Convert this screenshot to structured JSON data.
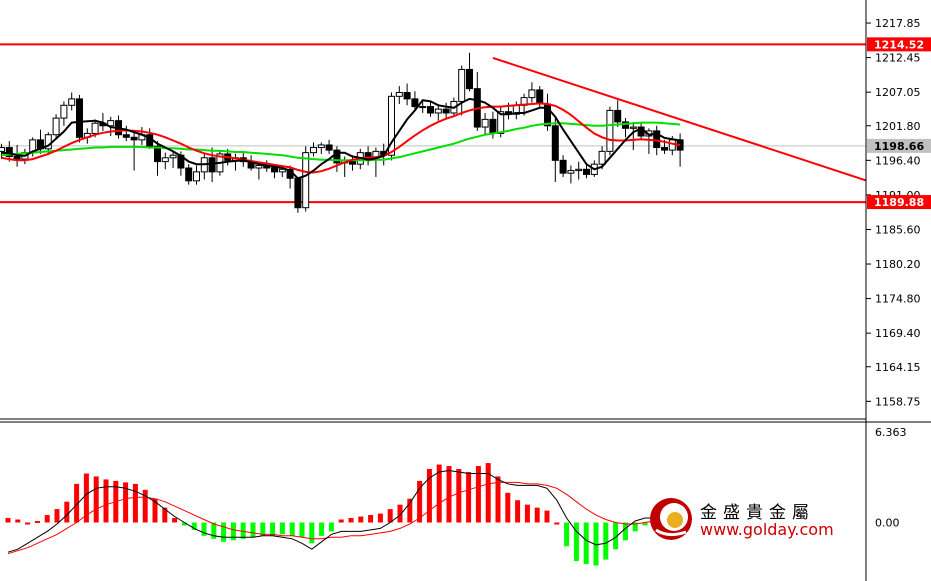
{
  "chart_data": [
    {
      "type": "candlestick",
      "ylim": [
        1156.3,
        1220.2
      ],
      "y_ticks": [
        "1217.85",
        "1212.45",
        "1207.05",
        "1201.80",
        "1196.40",
        "1191.00",
        "1185.60",
        "1180.20",
        "1174.80",
        "1169.40",
        "1164.15",
        "1158.75"
      ],
      "y_tick_values": [
        1217.85,
        1212.45,
        1207.05,
        1201.8,
        1196.4,
        1191.0,
        1185.6,
        1180.2,
        1174.8,
        1169.4,
        1164.15,
        1158.75
      ],
      "price_tags": [
        {
          "label": "1214.52",
          "value": 1214.52,
          "color": "#ff0000"
        },
        {
          "label": "1198.66",
          "value": 1198.66,
          "color": "#c0c0c0"
        },
        {
          "label": "1189.88",
          "value": 1189.88,
          "color": "#ff0000"
        }
      ],
      "horizontal_lines": [
        {
          "value": 1214.52,
          "color": "#ff0000"
        },
        {
          "value": 1189.88,
          "color": "#ff0000"
        },
        {
          "value": 1198.66,
          "color": "#c0c0c0"
        }
      ],
      "trendline": {
        "from": [
          63,
          1212.4
        ],
        "to": [
          113,
          1192.4
        ],
        "color": "#ff0000"
      },
      "candles": [
        [
          1197.8,
          1199.0,
          1196.6,
          1198.4
        ],
        [
          1198.4,
          1199.4,
          1196.2,
          1197.0
        ],
        [
          1197.0,
          1198.8,
          1195.4,
          1196.6
        ],
        [
          1196.6,
          1198.2,
          1195.8,
          1197.6
        ],
        [
          1197.6,
          1200.0,
          1197.0,
          1199.6
        ],
        [
          1199.6,
          1201.2,
          1197.4,
          1198.2
        ],
        [
          1198.2,
          1200.8,
          1197.2,
          1200.4
        ],
        [
          1200.4,
          1203.6,
          1199.8,
          1203.0
        ],
        [
          1203.0,
          1205.6,
          1201.8,
          1205.0
        ],
        [
          1205.0,
          1207.0,
          1204.2,
          1206.0
        ],
        [
          1206.0,
          1206.6,
          1199.2,
          1200.0
        ],
        [
          1200.0,
          1201.4,
          1199.0,
          1200.6
        ],
        [
          1200.6,
          1202.8,
          1200.0,
          1202.2
        ],
        [
          1202.2,
          1203.8,
          1201.0,
          1201.8
        ],
        [
          1201.8,
          1203.2,
          1200.2,
          1202.6
        ],
        [
          1202.6,
          1203.4,
          1199.8,
          1200.4
        ],
        [
          1200.4,
          1201.8,
          1199.4,
          1200.0
        ],
        [
          1200.0,
          1201.0,
          1194.8,
          1199.6
        ],
        [
          1199.6,
          1201.6,
          1198.8,
          1200.4
        ],
        [
          1200.4,
          1201.4,
          1198.2,
          1198.6
        ],
        [
          1198.6,
          1199.4,
          1194.0,
          1196.2
        ],
        [
          1196.2,
          1197.6,
          1195.0,
          1196.8
        ],
        [
          1196.8,
          1197.8,
          1195.2,
          1197.2
        ],
        [
          1197.2,
          1197.8,
          1194.0,
          1195.2
        ],
        [
          1195.2,
          1195.8,
          1192.6,
          1193.2
        ],
        [
          1193.2,
          1195.6,
          1192.6,
          1194.6
        ],
        [
          1194.6,
          1197.6,
          1193.4,
          1196.8
        ],
        [
          1196.8,
          1198.4,
          1193.0,
          1194.6
        ],
        [
          1194.6,
          1197.8,
          1194.0,
          1197.4
        ],
        [
          1197.4,
          1198.2,
          1195.6,
          1196.4
        ],
        [
          1196.4,
          1197.4,
          1194.8,
          1196.8
        ],
        [
          1196.8,
          1197.6,
          1195.4,
          1196.2
        ],
        [
          1196.2,
          1197.2,
          1194.8,
          1195.2
        ],
        [
          1195.2,
          1196.0,
          1193.4,
          1195.6
        ],
        [
          1195.6,
          1196.4,
          1194.6,
          1195.2
        ],
        [
          1195.2,
          1195.8,
          1193.6,
          1194.6
        ],
        [
          1194.6,
          1195.6,
          1193.8,
          1195.0
        ],
        [
          1195.0,
          1195.6,
          1192.0,
          1193.6
        ],
        [
          1193.6,
          1193.8,
          1188.2,
          1189.0
        ],
        [
          1189.0,
          1198.6,
          1188.4,
          1197.6
        ],
        [
          1197.6,
          1199.2,
          1197.0,
          1198.4
        ],
        [
          1198.4,
          1199.2,
          1197.4,
          1198.8
        ],
        [
          1198.8,
          1199.6,
          1197.4,
          1198.0
        ],
        [
          1198.0,
          1198.6,
          1194.6,
          1196.0
        ],
        [
          1196.0,
          1197.0,
          1193.8,
          1196.4
        ],
        [
          1196.4,
          1197.2,
          1194.8,
          1195.8
        ],
        [
          1195.8,
          1198.2,
          1195.0,
          1197.6
        ],
        [
          1197.6,
          1198.6,
          1195.6,
          1196.8
        ],
        [
          1196.8,
          1198.4,
          1193.8,
          1197.8
        ],
        [
          1197.8,
          1199.0,
          1195.6,
          1197.2
        ],
        [
          1197.2,
          1207.0,
          1196.4,
          1206.4
        ],
        [
          1206.4,
          1208.0,
          1205.2,
          1207.0
        ],
        [
          1207.0,
          1208.4,
          1205.0,
          1206.0
        ],
        [
          1206.0,
          1207.2,
          1204.4,
          1204.8
        ],
        [
          1204.8,
          1205.8,
          1203.8,
          1204.8
        ],
        [
          1204.8,
          1205.6,
          1203.2,
          1203.8
        ],
        [
          1203.8,
          1205.2,
          1202.6,
          1204.4
        ],
        [
          1204.4,
          1205.4,
          1203.0,
          1203.8
        ],
        [
          1203.8,
          1206.2,
          1203.2,
          1205.6
        ],
        [
          1205.6,
          1211.2,
          1203.4,
          1210.6
        ],
        [
          1210.6,
          1213.2,
          1207.2,
          1207.6
        ],
        [
          1207.6,
          1210.2,
          1201.0,
          1201.6
        ],
        [
          1201.6,
          1203.8,
          1200.4,
          1202.8
        ],
        [
          1202.8,
          1204.0,
          1199.8,
          1200.6
        ],
        [
          1200.6,
          1204.8,
          1200.0,
          1204.0
        ],
        [
          1204.0,
          1205.4,
          1202.8,
          1203.6
        ],
        [
          1203.6,
          1205.6,
          1202.8,
          1205.0
        ],
        [
          1205.0,
          1206.8,
          1203.4,
          1206.2
        ],
        [
          1206.2,
          1208.6,
          1205.4,
          1207.4
        ],
        [
          1207.4,
          1208.0,
          1204.6,
          1205.2
        ],
        [
          1205.2,
          1206.8,
          1201.0,
          1201.8
        ],
        [
          1201.8,
          1203.0,
          1193.0,
          1196.4
        ],
        [
          1196.4,
          1197.2,
          1193.8,
          1194.4
        ],
        [
          1194.4,
          1195.6,
          1192.8,
          1194.8
        ],
        [
          1194.8,
          1196.2,
          1193.4,
          1195.0
        ],
        [
          1195.0,
          1196.0,
          1193.6,
          1194.2
        ],
        [
          1194.2,
          1196.4,
          1193.8,
          1195.8
        ],
        [
          1195.8,
          1198.6,
          1195.0,
          1197.8
        ],
        [
          1197.8,
          1204.8,
          1197.2,
          1204.2
        ],
        [
          1204.2,
          1205.8,
          1201.6,
          1202.4
        ],
        [
          1202.4,
          1203.0,
          1200.0,
          1201.4
        ],
        [
          1201.4,
          1202.4,
          1198.0,
          1201.6
        ],
        [
          1201.6,
          1202.2,
          1199.8,
          1200.2
        ],
        [
          1200.2,
          1201.4,
          1197.4,
          1201.0
        ],
        [
          1201.0,
          1201.8,
          1197.2,
          1198.4
        ],
        [
          1198.4,
          1199.6,
          1197.4,
          1198.0
        ],
        [
          1198.0,
          1200.2,
          1197.2,
          1199.6
        ],
        [
          1199.6,
          1200.6,
          1195.4,
          1198.0
        ]
      ],
      "ma_fast": [
        1197.6,
        1197.5,
        1197.2,
        1197.1,
        1197.8,
        1198.2,
        1198.7,
        1199.8,
        1200.9,
        1202.3,
        1202.4,
        1202.5,
        1202.6,
        1202.3,
        1201.6,
        1201.4,
        1201.2,
        1200.8,
        1200.4,
        1199.9,
        1199.0,
        1198.4,
        1197.8,
        1197.1,
        1196.2,
        1195.8,
        1195.8,
        1195.9,
        1196.0,
        1196.2,
        1196.3,
        1196.4,
        1196.1,
        1195.8,
        1195.6,
        1195.4,
        1195.2,
        1194.8,
        1193.6,
        1194.0,
        1194.8,
        1195.8,
        1196.6,
        1197.6,
        1197.6,
        1197.0,
        1196.8,
        1196.5,
        1196.7,
        1197.1,
        1199.2,
        1201.0,
        1202.8,
        1204.2,
        1205.8,
        1205.6,
        1205.0,
        1204.8,
        1204.6,
        1205.4,
        1206.0,
        1205.8,
        1205.4,
        1204.6,
        1203.6,
        1203.6,
        1203.8,
        1203.8,
        1204.2,
        1204.6,
        1204.6,
        1203.2,
        1201.2,
        1199.4,
        1197.6,
        1195.8,
        1195.0,
        1195.4,
        1196.8,
        1198.2,
        1199.6,
        1200.8,
        1201.4,
        1200.4,
        1200.6,
        1199.9,
        1199.7,
        1199.5
      ],
      "ma_mid": [
        1196.8,
        1196.6,
        1196.4,
        1196.4,
        1196.6,
        1197.0,
        1197.4,
        1197.9,
        1198.5,
        1199.1,
        1199.6,
        1200.0,
        1200.4,
        1200.7,
        1200.9,
        1201.0,
        1201.1,
        1201.0,
        1200.9,
        1200.7,
        1200.4,
        1200.0,
        1199.5,
        1199.0,
        1198.4,
        1197.9,
        1197.5,
        1197.2,
        1197.0,
        1196.9,
        1196.7,
        1196.5,
        1196.3,
        1196.1,
        1195.9,
        1195.7,
        1195.5,
        1195.3,
        1194.9,
        1194.6,
        1194.5,
        1194.7,
        1195.1,
        1195.6,
        1196.1,
        1196.5,
        1196.7,
        1196.8,
        1196.9,
        1197.1,
        1197.7,
        1198.5,
        1199.4,
        1200.3,
        1201.1,
        1201.8,
        1202.4,
        1202.9,
        1203.3,
        1203.8,
        1204.2,
        1204.5,
        1204.7,
        1204.8,
        1204.8,
        1204.9,
        1205.0,
        1205.1,
        1205.2,
        1205.3,
        1205.2,
        1204.9,
        1204.3,
        1203.5,
        1202.5,
        1201.5,
        1200.6,
        1200.0,
        1199.6,
        1199.5,
        1199.5,
        1199.6,
        1199.7,
        1199.6,
        1199.5,
        1199.3,
        1199.0,
        1198.8
      ],
      "ma_slow": [
        1197.2,
        1197.3,
        1197.4,
        1197.5,
        1197.6,
        1197.7,
        1197.8,
        1197.9,
        1198.0,
        1198.1,
        1198.2,
        1198.3,
        1198.4,
        1198.4,
        1198.5,
        1198.5,
        1198.5,
        1198.5,
        1198.5,
        1198.4,
        1198.4,
        1198.3,
        1198.3,
        1198.2,
        1198.1,
        1198.1,
        1198.0,
        1197.9,
        1197.9,
        1197.8,
        1197.7,
        1197.7,
        1197.6,
        1197.5,
        1197.4,
        1197.3,
        1197.2,
        1197.0,
        1196.8,
        1196.7,
        1196.6,
        1196.5,
        1196.5,
        1196.4,
        1196.4,
        1196.4,
        1196.4,
        1196.4,
        1196.5,
        1196.5,
        1196.7,
        1196.9,
        1197.2,
        1197.5,
        1197.8,
        1198.1,
        1198.4,
        1198.7,
        1199.0,
        1199.4,
        1199.8,
        1200.1,
        1200.4,
        1200.6,
        1200.8,
        1201.0,
        1201.3,
        1201.5,
        1201.8,
        1202.0,
        1202.1,
        1202.2,
        1202.2,
        1202.1,
        1202.0,
        1201.9,
        1201.8,
        1201.8,
        1201.9,
        1202.0,
        1202.1,
        1202.2,
        1202.3,
        1202.3,
        1202.3,
        1202.2,
        1202.1,
        1202.0
      ]
    },
    {
      "type": "histogram",
      "indicator": "MACD",
      "ylim": [
        -3.2,
        6.363
      ],
      "y_ticks": [
        "6.363",
        "0.00"
      ],
      "y_tick_values": [
        6.363,
        0.0
      ],
      "bars": [
        0.3,
        0.2,
        0.0,
        0.1,
        0.5,
        0.9,
        1.4,
        2.6,
        3.3,
        3.1,
        2.9,
        2.8,
        2.7,
        2.6,
        2.2,
        1.6,
        1.0,
        0.3,
        -0.2,
        -0.5,
        -0.9,
        -1.1,
        -1.3,
        -1.2,
        -1.1,
        -1.0,
        -0.9,
        -0.9,
        -0.8,
        -0.9,
        -1.0,
        -1.4,
        -0.9,
        -0.6,
        0.2,
        0.3,
        0.4,
        0.5,
        0.6,
        0.9,
        1.2,
        1.6,
        2.8,
        3.6,
        3.9,
        3.8,
        3.6,
        3.4,
        3.8,
        4.0,
        3.1,
        2.0,
        1.5,
        1.2,
        1.0,
        0.8,
        0.0,
        -1.6,
        -2.6,
        -2.8,
        -2.9,
        -2.5,
        -1.8,
        -1.2,
        -0.6,
        -0.2,
        0.2,
        0.1
      ],
      "bar_colors": {
        "positive": "#ff0000",
        "negative": "#00ff00"
      },
      "signal_black": [
        -2.0,
        -1.8,
        -1.4,
        -1.0,
        -0.6,
        -0.1,
        0.5,
        1.2,
        1.9,
        2.3,
        2.4,
        2.4,
        2.3,
        2.1,
        1.8,
        1.4,
        0.9,
        0.4,
        0.0,
        -0.4,
        -0.7,
        -0.9,
        -1.0,
        -1.0,
        -1.0,
        -1.0,
        -0.9,
        -0.9,
        -1.0,
        -1.1,
        -1.4,
        -1.8,
        -1.3,
        -0.8,
        -0.6,
        -0.6,
        -0.6,
        -0.5,
        -0.4,
        0.0,
        0.5,
        1.3,
        2.3,
        3.0,
        3.4,
        3.5,
        3.4,
        3.3,
        3.3,
        3.3,
        2.9,
        2.6,
        2.5,
        2.5,
        2.5,
        2.3,
        1.5,
        0.3,
        -0.6,
        -1.2,
        -1.5,
        -1.4,
        -1.0,
        -0.4,
        0.1,
        0.3,
        0.3,
        0.3
      ],
      "signal_red": [
        -2.1,
        -1.9,
        -1.7,
        -1.4,
        -1.1,
        -0.8,
        -0.4,
        0.0,
        0.5,
        0.9,
        1.2,
        1.4,
        1.6,
        1.7,
        1.7,
        1.6,
        1.4,
        1.1,
        0.8,
        0.5,
        0.2,
        -0.1,
        -0.3,
        -0.5,
        -0.6,
        -0.7,
        -0.8,
        -0.8,
        -0.9,
        -0.9,
        -1.0,
        -1.1,
        -1.1,
        -1.0,
        -1.0,
        -0.9,
        -0.9,
        -0.8,
        -0.7,
        -0.6,
        -0.4,
        -0.1,
        0.3,
        0.8,
        1.3,
        1.7,
        2.0,
        2.2,
        2.4,
        2.6,
        2.7,
        2.7,
        2.7,
        2.6,
        2.6,
        2.5,
        2.3,
        1.9,
        1.4,
        0.9,
        0.5,
        0.2,
        0.0,
        -0.1,
        -0.1,
        0.0,
        0.1,
        0.2
      ]
    }
  ],
  "watermark": {
    "text_cn": "金盛貴金屬",
    "url": "www.golday.com"
  }
}
